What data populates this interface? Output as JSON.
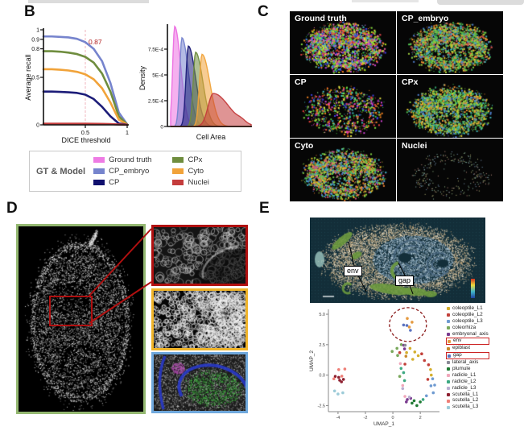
{
  "figure": {
    "panels": {
      "b": "B",
      "c": "C",
      "d": "D",
      "e": "E"
    }
  },
  "panel_b": {
    "legend": {
      "title": "GT & Model",
      "entries": [
        {
          "label": "Ground truth",
          "color": "#ee7be4"
        },
        {
          "label": "CP_embryo",
          "color": "#7684cd"
        },
        {
          "label": "CP",
          "color": "#10106e"
        },
        {
          "label": "CPx",
          "color": "#6f8d3e"
        },
        {
          "label": "Cyto",
          "color": "#f1a33a"
        },
        {
          "label": "Nuclei",
          "color": "#c43c3c"
        }
      ]
    }
  },
  "chart_data": [
    {
      "type": "line",
      "title": "",
      "xlabel": "DICE threshold",
      "ylabel": "Average recall",
      "xlim": [
        0,
        1
      ],
      "ylim": [
        0,
        1
      ],
      "xticks": [
        {
          "v": 0.5,
          "label": "0.5"
        },
        {
          "v": 1,
          "label": "1"
        }
      ],
      "yticks": [
        {
          "v": 0,
          "label": "0"
        },
        {
          "v": 0.5,
          "label": "0.5"
        },
        {
          "v": 0.8,
          "label": "0.8"
        },
        {
          "v": 0.9,
          "label": "0.9"
        },
        {
          "v": 1,
          "label": "1"
        }
      ],
      "vline": {
        "x": 0.5,
        "color": "#f0b6be"
      },
      "annotation": {
        "text": "0.87",
        "color": "#b22222"
      },
      "x": [
        0,
        0.1,
        0.2,
        0.3,
        0.4,
        0.5,
        0.6,
        0.7,
        0.8,
        0.9,
        1.0
      ],
      "series": [
        {
          "name": "CP_embryo",
          "color": "#7684cd",
          "values": [
            0.93,
            0.93,
            0.925,
            0.92,
            0.905,
            0.87,
            0.8,
            0.67,
            0.44,
            0.13,
            0.005
          ]
        },
        {
          "name": "CPx",
          "color": "#6f8d3e",
          "values": [
            0.775,
            0.775,
            0.77,
            0.76,
            0.745,
            0.715,
            0.655,
            0.54,
            0.35,
            0.09,
            0.005
          ]
        },
        {
          "name": "Cyto",
          "color": "#f1a33a",
          "values": [
            0.585,
            0.585,
            0.58,
            0.572,
            0.558,
            0.532,
            0.48,
            0.385,
            0.235,
            0.055,
            0.003
          ]
        },
        {
          "name": "CP",
          "color": "#1c1c78",
          "values": [
            0.35,
            0.35,
            0.347,
            0.343,
            0.336,
            0.318,
            0.272,
            0.19,
            0.09,
            0.015,
            0.002
          ]
        },
        {
          "name": "Nuclei",
          "color": "#c43c3c",
          "values": [
            0.012,
            0.012,
            0.012,
            0.012,
            0.012,
            0.012,
            0.011,
            0.01,
            0.008,
            0.004,
            0.001
          ]
        }
      ]
    },
    {
      "type": "area",
      "title": "",
      "xlabel": "Cell Area",
      "ylabel": "Density",
      "yticks": [
        {
          "v": 0,
          "label": "0"
        },
        {
          "v": 0.00025,
          "label": "2.5E-4"
        },
        {
          "v": 0.0005,
          "label": "5E-4"
        },
        {
          "v": 0.00075,
          "label": "7.5E-4"
        }
      ],
      "series": [
        {
          "name": "Ground truth",
          "color": "#ec6fe1",
          "peak_x": 0.05,
          "peak_density": 0.00097,
          "spread": 0.05
        },
        {
          "name": "CP_embryo",
          "color": "#7684cd",
          "peak_x": 0.14,
          "peak_density": 0.00086,
          "spread": 0.055
        },
        {
          "name": "CP",
          "color": "#1c1c78",
          "peak_x": 0.22,
          "peak_density": 0.00078,
          "spread": 0.06
        },
        {
          "name": "CPx",
          "color": "#6f8d3e",
          "peak_x": 0.31,
          "peak_density": 0.00072,
          "spread": 0.06
        },
        {
          "name": "Cyto",
          "color": "#f1a33a",
          "peak_x": 0.39,
          "peak_density": 0.0007,
          "spread": 0.065
        },
        {
          "name": "Nuclei",
          "color": "#c43c3c",
          "peak_x": 0.53,
          "peak_density": 0.00032,
          "spread": 0.13,
          "bump": {
            "x": 0.88,
            "d": 2.2e-05,
            "w": 0.05
          }
        }
      ]
    },
    {
      "type": "scatter",
      "title": "",
      "xlabel": "UMAP_1",
      "ylabel": "UMAP_2",
      "xlim": [
        -4.7,
        3.4
      ],
      "ylim": [
        -3.0,
        5.4
      ],
      "xticks": [
        {
          "v": -4,
          "label": "-4"
        },
        {
          "v": -2,
          "label": "-2"
        },
        {
          "v": 0,
          "label": "0"
        },
        {
          "v": 2,
          "label": "2"
        }
      ],
      "yticks": [
        {
          "v": 5.0,
          "label": "5.0"
        },
        {
          "v": 2.5,
          "label": "2.5"
        },
        {
          "v": 0.0,
          "label": "0.0"
        },
        {
          "v": -2.5,
          "label": "-2.5"
        }
      ],
      "circle_annotation": {
        "x": 1.1,
        "y": 4.15,
        "color": "#8b1b1b"
      },
      "legend": [
        {
          "label": "coleoptile_L1",
          "color": "#d4af2e",
          "boxed": false
        },
        {
          "label": "coleoptile_L2",
          "color": "#c2403a",
          "boxed": false
        },
        {
          "label": "coleoptile_L3",
          "color": "#6f9bd1",
          "boxed": false
        },
        {
          "label": "coleorhiza",
          "color": "#79a85c",
          "boxed": false
        },
        {
          "label": "embryonal_axis",
          "color": "#7a3b8f",
          "boxed": false
        },
        {
          "label": "env",
          "color": "#e59a3f",
          "boxed": true
        },
        {
          "label": "epiblast",
          "color": "#c98a2e",
          "boxed": false
        },
        {
          "label": "gap",
          "color": "#5a72c0",
          "boxed": true
        },
        {
          "label": "lateral_axis",
          "color": "#8a8a96",
          "boxed": false
        },
        {
          "label": "plumule",
          "color": "#1f7a33",
          "boxed": false
        },
        {
          "label": "radicle_L1",
          "color": "#f0a8bb",
          "boxed": false
        },
        {
          "label": "radicle_L2",
          "color": "#3da982",
          "boxed": false
        },
        {
          "label": "radicle_L3",
          "color": "#b9aed0",
          "boxed": false
        },
        {
          "label": "scutella_L1",
          "color": "#8e2030",
          "boxed": false
        },
        {
          "label": "scutella_L2",
          "color": "#ef8078",
          "boxed": false
        },
        {
          "label": "scutella_L3",
          "color": "#9ccbd8",
          "boxed": false
        }
      ],
      "points": [
        {
          "label": "env",
          "pts": [
            [
              1.05,
              4.65
            ],
            [
              1.4,
              4.35
            ],
            [
              1.2,
              3.95
            ]
          ]
        },
        {
          "label": "gap",
          "pts": [
            [
              0.78,
              4.12
            ],
            [
              1.02,
              4.08
            ],
            [
              1.28,
              3.68
            ]
          ]
        },
        {
          "label": "coleorhiza",
          "pts": [
            [
              0.62,
              2.5
            ],
            [
              0.3,
              2.2
            ],
            [
              -0.05,
              1.95
            ],
            [
              0.35,
              1.62
            ],
            [
              0.5,
              -0.1
            ]
          ]
        },
        {
          "label": "embryonal_axis",
          "pts": [
            [
              0.85,
              2.15
            ],
            [
              0.8,
              2.45
            ],
            [
              1.05,
              -2.0
            ],
            [
              1.3,
              -1.9
            ],
            [
              0.98,
              -2.2
            ]
          ]
        },
        {
          "label": "coleoptile_L1",
          "pts": [
            [
              1.25,
              2.2
            ],
            [
              1.0,
              1.85
            ],
            [
              1.6,
              1.9
            ],
            [
              1.85,
              1.6
            ],
            [
              1.45,
              1.3
            ],
            [
              2.75,
              0.45
            ],
            [
              2.8,
              0.0
            ]
          ]
        },
        {
          "label": "coleoptile_L2",
          "pts": [
            [
              2.1,
              1.75
            ],
            [
              0.5,
              1.85
            ],
            [
              2.3,
              1.2
            ],
            [
              2.6,
              0.85
            ],
            [
              2.55,
              -0.35
            ],
            [
              0.88,
              0.9
            ]
          ]
        },
        {
          "label": "epiblast",
          "pts": [
            [
              0.95,
              1.55
            ]
          ]
        },
        {
          "label": "lateral_axis",
          "pts": [
            [
              0.9,
              2.45
            ]
          ]
        },
        {
          "label": "radicle_L1",
          "pts": [
            [
              0.55,
              0.95
            ],
            [
              0.72,
              -0.85
            ],
            [
              0.88,
              -1.75
            ]
          ]
        },
        {
          "label": "radicle_L2",
          "pts": [
            [
              0.6,
              0.55
            ],
            [
              0.78,
              0.2
            ],
            [
              0.85,
              -0.45
            ],
            [
              2.2,
              -2.0
            ]
          ]
        },
        {
          "label": "radicle_L3",
          "pts": [
            [
              0.72,
              -1.1
            ],
            [
              1.2,
              -1.8
            ]
          ]
        },
        {
          "label": "plumule",
          "pts": [
            [
              1.55,
              -2.1
            ],
            [
              2.0,
              -2.2
            ],
            [
              1.75,
              -2.5
            ],
            [
              1.4,
              -2.3
            ]
          ]
        },
        {
          "label": "coleoptile_L3",
          "pts": [
            [
              2.9,
              -0.3
            ],
            [
              2.78,
              -0.88
            ],
            [
              3.05,
              -0.82
            ],
            [
              2.95,
              -1.45
            ],
            [
              2.45,
              -1.7
            ]
          ]
        },
        {
          "label": "scutella_L1",
          "pts": [
            [
              -4.2,
              -0.1
            ],
            [
              -3.95,
              -0.18
            ],
            [
              -3.88,
              -0.42
            ],
            [
              -3.6,
              -0.35
            ],
            [
              -3.75,
              -0.55
            ]
          ]
        },
        {
          "label": "scutella_L2",
          "pts": [
            [
              -3.95,
              0.45
            ],
            [
              -3.5,
              0.5
            ],
            [
              -3.72,
              -0.08
            ],
            [
              -4.3,
              -0.3
            ]
          ]
        },
        {
          "label": "scutella_L3",
          "pts": [
            [
              -4.25,
              -1.3
            ],
            [
              -4.0,
              -1.55
            ],
            [
              -3.65,
              -1.45
            ]
          ]
        }
      ]
    }
  ],
  "panel_c": {
    "cells": [
      {
        "label": "Ground truth",
        "style": "gt"
      },
      {
        "label": "CP_embryo",
        "style": "embryo"
      },
      {
        "label": "CP",
        "style": "cp"
      },
      {
        "label": "CPx",
        "style": "cpx"
      },
      {
        "label": "Cyto",
        "style": "cyto"
      },
      {
        "label": "Nuclei",
        "style": "nuclei"
      }
    ]
  },
  "panel_e": {
    "map_labels": [
      {
        "text": "env"
      },
      {
        "text": "gap"
      }
    ]
  }
}
